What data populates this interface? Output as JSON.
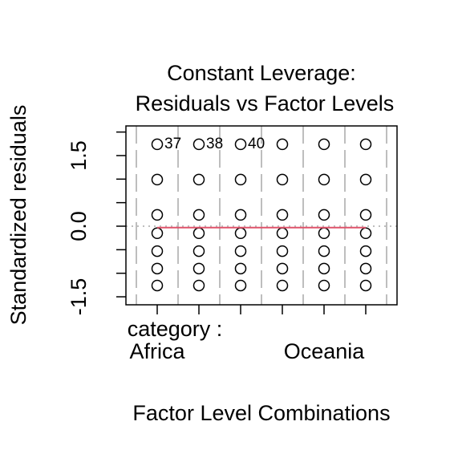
{
  "chart_data": {
    "type": "scatter",
    "title": [
      "Constant Leverage:",
      "Residuals vs Factor Levels"
    ],
    "xlabel": "Factor Level Combinations",
    "ylabel": "Standardized residuals",
    "x_factor_label": "category :",
    "categories": [
      "Africa",
      null,
      null,
      null,
      "Oceania",
      null
    ],
    "xlim": [
      0.25,
      6.75
    ],
    "ylim": [
      -1.67,
      2.13
    ],
    "yticks": [
      {
        "value": -1.5,
        "label": "-1.5"
      },
      {
        "value": 0,
        "label": "0.0"
      },
      {
        "value": 1.5,
        "label": "1.5"
      }
    ],
    "yticks_minor": [
      -1,
      -0.5,
      0.5,
      1,
      2
    ],
    "vlines": [
      0.5,
      1.5,
      2.5,
      3.5,
      4.5,
      5.5,
      6.5
    ],
    "hline": 0,
    "series": [
      {
        "color": "#000000",
        "x": [
          1,
          1,
          1,
          1,
          1,
          1,
          1,
          2,
          2,
          2,
          2,
          2,
          2,
          2,
          3,
          3,
          3,
          3,
          3,
          3,
          3,
          4,
          4,
          4,
          4,
          4,
          4,
          4,
          5,
          5,
          5,
          5,
          5,
          5,
          5,
          6,
          6,
          6,
          6,
          6,
          6,
          6
        ],
        "values": [
          1.74,
          0.99,
          0.24,
          -0.15,
          -0.53,
          -0.9,
          -1.26,
          1.74,
          0.99,
          0.24,
          -0.15,
          -0.53,
          -0.9,
          -1.26,
          1.74,
          0.99,
          0.24,
          -0.15,
          -0.53,
          -0.9,
          -1.26,
          1.74,
          0.99,
          0.24,
          -0.15,
          -0.53,
          -0.9,
          -1.26,
          1.74,
          0.99,
          0.24,
          -0.15,
          -0.53,
          -0.9,
          -1.26,
          1.74,
          0.99,
          0.24,
          -0.15,
          -0.53,
          -0.9,
          -1.26
        ],
        "point_labels": [
          "37",
          null,
          null,
          null,
          null,
          null,
          null,
          "38",
          null,
          null,
          null,
          null,
          null,
          null,
          "40",
          null,
          null,
          null,
          null,
          null,
          null,
          null,
          null,
          null,
          null,
          null,
          null,
          null,
          null,
          null,
          null,
          null,
          null,
          null,
          null,
          null,
          null,
          null,
          null,
          null,
          null,
          null
        ]
      }
    ],
    "fit_line": {
      "color": "#df536b",
      "x": [
        1,
        6
      ],
      "values": [
        -0.03,
        -0.03
      ]
    }
  }
}
